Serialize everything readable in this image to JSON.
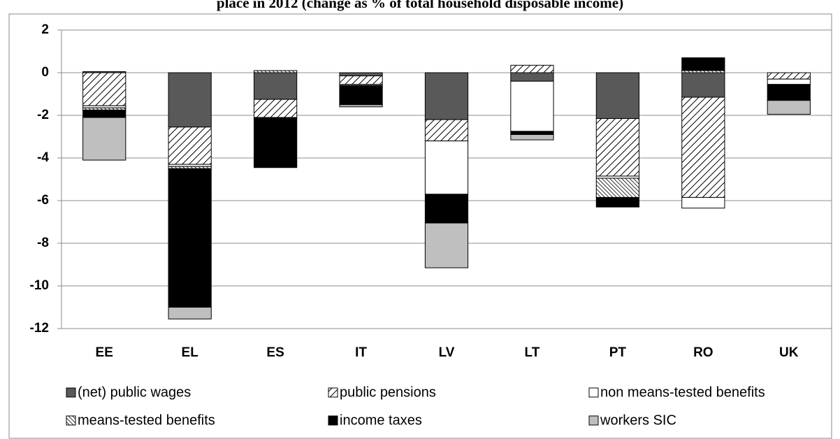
{
  "chart_data": {
    "type": "bar",
    "stacked": true,
    "title": "place in 2012 (change as % of total household disposable income)",
    "categories": [
      "EE",
      "EL",
      "ES",
      "IT",
      "LV",
      "LT",
      "PT",
      "RO",
      "UK"
    ],
    "series": [
      {
        "name": "(net) public wages",
        "color": "#595959",
        "values": [
          0.05,
          -2.55,
          -1.25,
          -0.15,
          -2.2,
          -0.4,
          -2.15,
          -1.15,
          0
        ]
      },
      {
        "name": "public pensions",
        "color": "#000000",
        "hatch": "sparse-up",
        "values": [
          -1.55,
          -1.75,
          -0.85,
          -0.4,
          -1.0,
          0.35,
          -2.7,
          -4.7,
          -0.3
        ]
      },
      {
        "name": "non means-tested benefits",
        "color": "#ffffff",
        "values": [
          -0.1,
          -0.1,
          0,
          -0.05,
          -2.5,
          -2.35,
          -0.1,
          -0.5,
          -0.25
        ]
      },
      {
        "name": "means-tested benefits",
        "color": "#000000",
        "hatch": "dense-down",
        "values": [
          -0.1,
          -0.1,
          0.1,
          0,
          0,
          0,
          -0.9,
          0.1,
          0
        ]
      },
      {
        "name": "income taxes",
        "color": "#000000",
        "values": [
          -0.35,
          -6.5,
          -2.35,
          -0.9,
          -1.35,
          -0.15,
          -0.45,
          0.6,
          -0.75
        ]
      },
      {
        "name": "workers SIC",
        "color": "#bfbfbf",
        "values": [
          -2.0,
          -0.55,
          0,
          -0.1,
          -2.1,
          -0.25,
          0,
          0,
          -0.65
        ]
      }
    ],
    "ylim": [
      -12,
      2
    ],
    "yticks": [
      -12,
      -10,
      -8,
      -6,
      -4,
      -2,
      0,
      2
    ],
    "grid": true
  }
}
